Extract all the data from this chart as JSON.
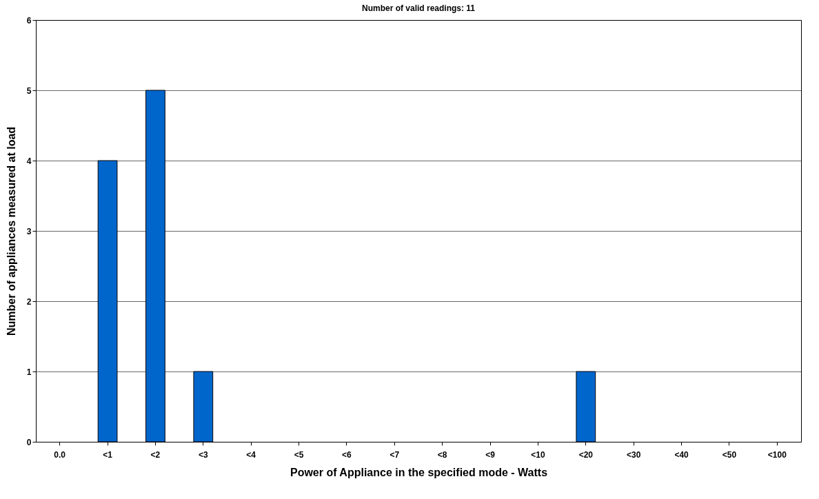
{
  "chart_data": {
    "type": "bar",
    "title": "Number of valid readings: 11",
    "xlabel": "Power of Appliance in the specified mode - Watts",
    "ylabel": "Number of appliances measured at load",
    "categories": [
      "0.0",
      "<1",
      "<2",
      "<3",
      "<4",
      "<5",
      "<6",
      "<7",
      "<8",
      "<9",
      "<10",
      "<20",
      "<30",
      "<40",
      "<50",
      "<100"
    ],
    "values": [
      0,
      4,
      5,
      1,
      0,
      0,
      0,
      0,
      0,
      0,
      0,
      1,
      0,
      0,
      0,
      0
    ],
    "color": "#0066cc",
    "ylim": [
      0,
      6
    ],
    "yticks": [
      0,
      1,
      2,
      3,
      4,
      5,
      6
    ],
    "grid": "y"
  }
}
